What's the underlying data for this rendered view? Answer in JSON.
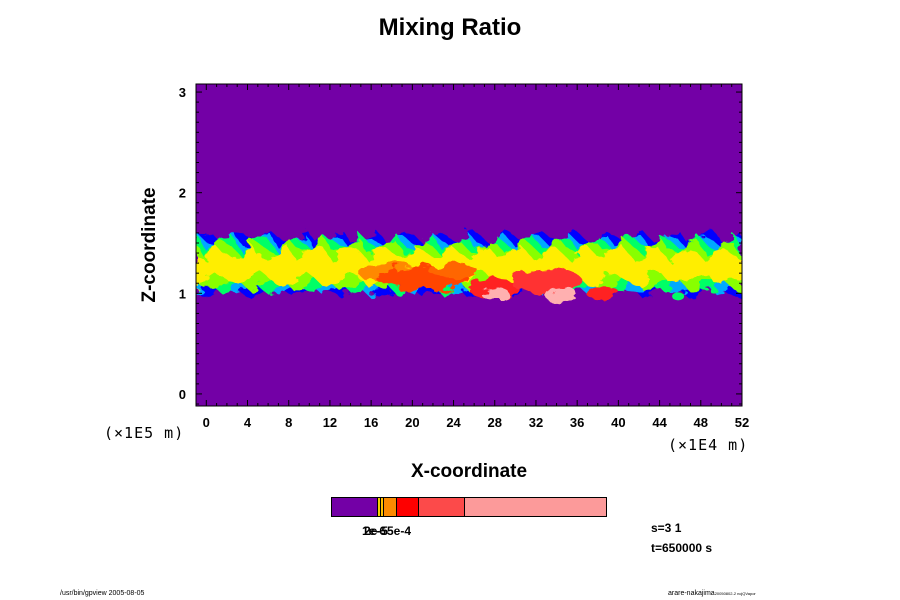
{
  "chart_data": {
    "type": "heatmap",
    "title": "Mixing Ratio",
    "xlabel": "X-coordinate",
    "ylabel": "Z-coordinate",
    "xunit": "(×1E4 m)",
    "yunit": "(×1E5 m)",
    "xlim": [
      -1,
      52
    ],
    "ylim": [
      -0.12,
      3.08
    ],
    "xticks": [
      "0",
      "4",
      "8",
      "12",
      "16",
      "20",
      "24",
      "28",
      "32",
      "36",
      "40",
      "44",
      "48",
      "52"
    ],
    "yticks": [
      "0",
      "1",
      "2",
      "3"
    ],
    "background_color": "#7300a6",
    "colorbar": {
      "colors": [
        "#7300a6",
        "#f3d000",
        "#fb8a00",
        "#fe0000",
        "#fc4a4a",
        "#fc9a9a"
      ],
      "labels_overlapped": "1e-6",
      "label_right": "5e-4",
      "label_overlap_text": "2e-5"
    },
    "annotations": [
      "s=3 1",
      "t=650000 s"
    ]
  },
  "footer": {
    "left": "/usr/bin/gpview 2005-08-05",
    "right_main": "arare-nakajima",
    "right_small": "20050802-2 ncjQVapor"
  },
  "text": {
    "cb_label_a": "1e-6",
    "cb_label_b": "2e-5",
    "cb_label_c": "5e-4"
  }
}
